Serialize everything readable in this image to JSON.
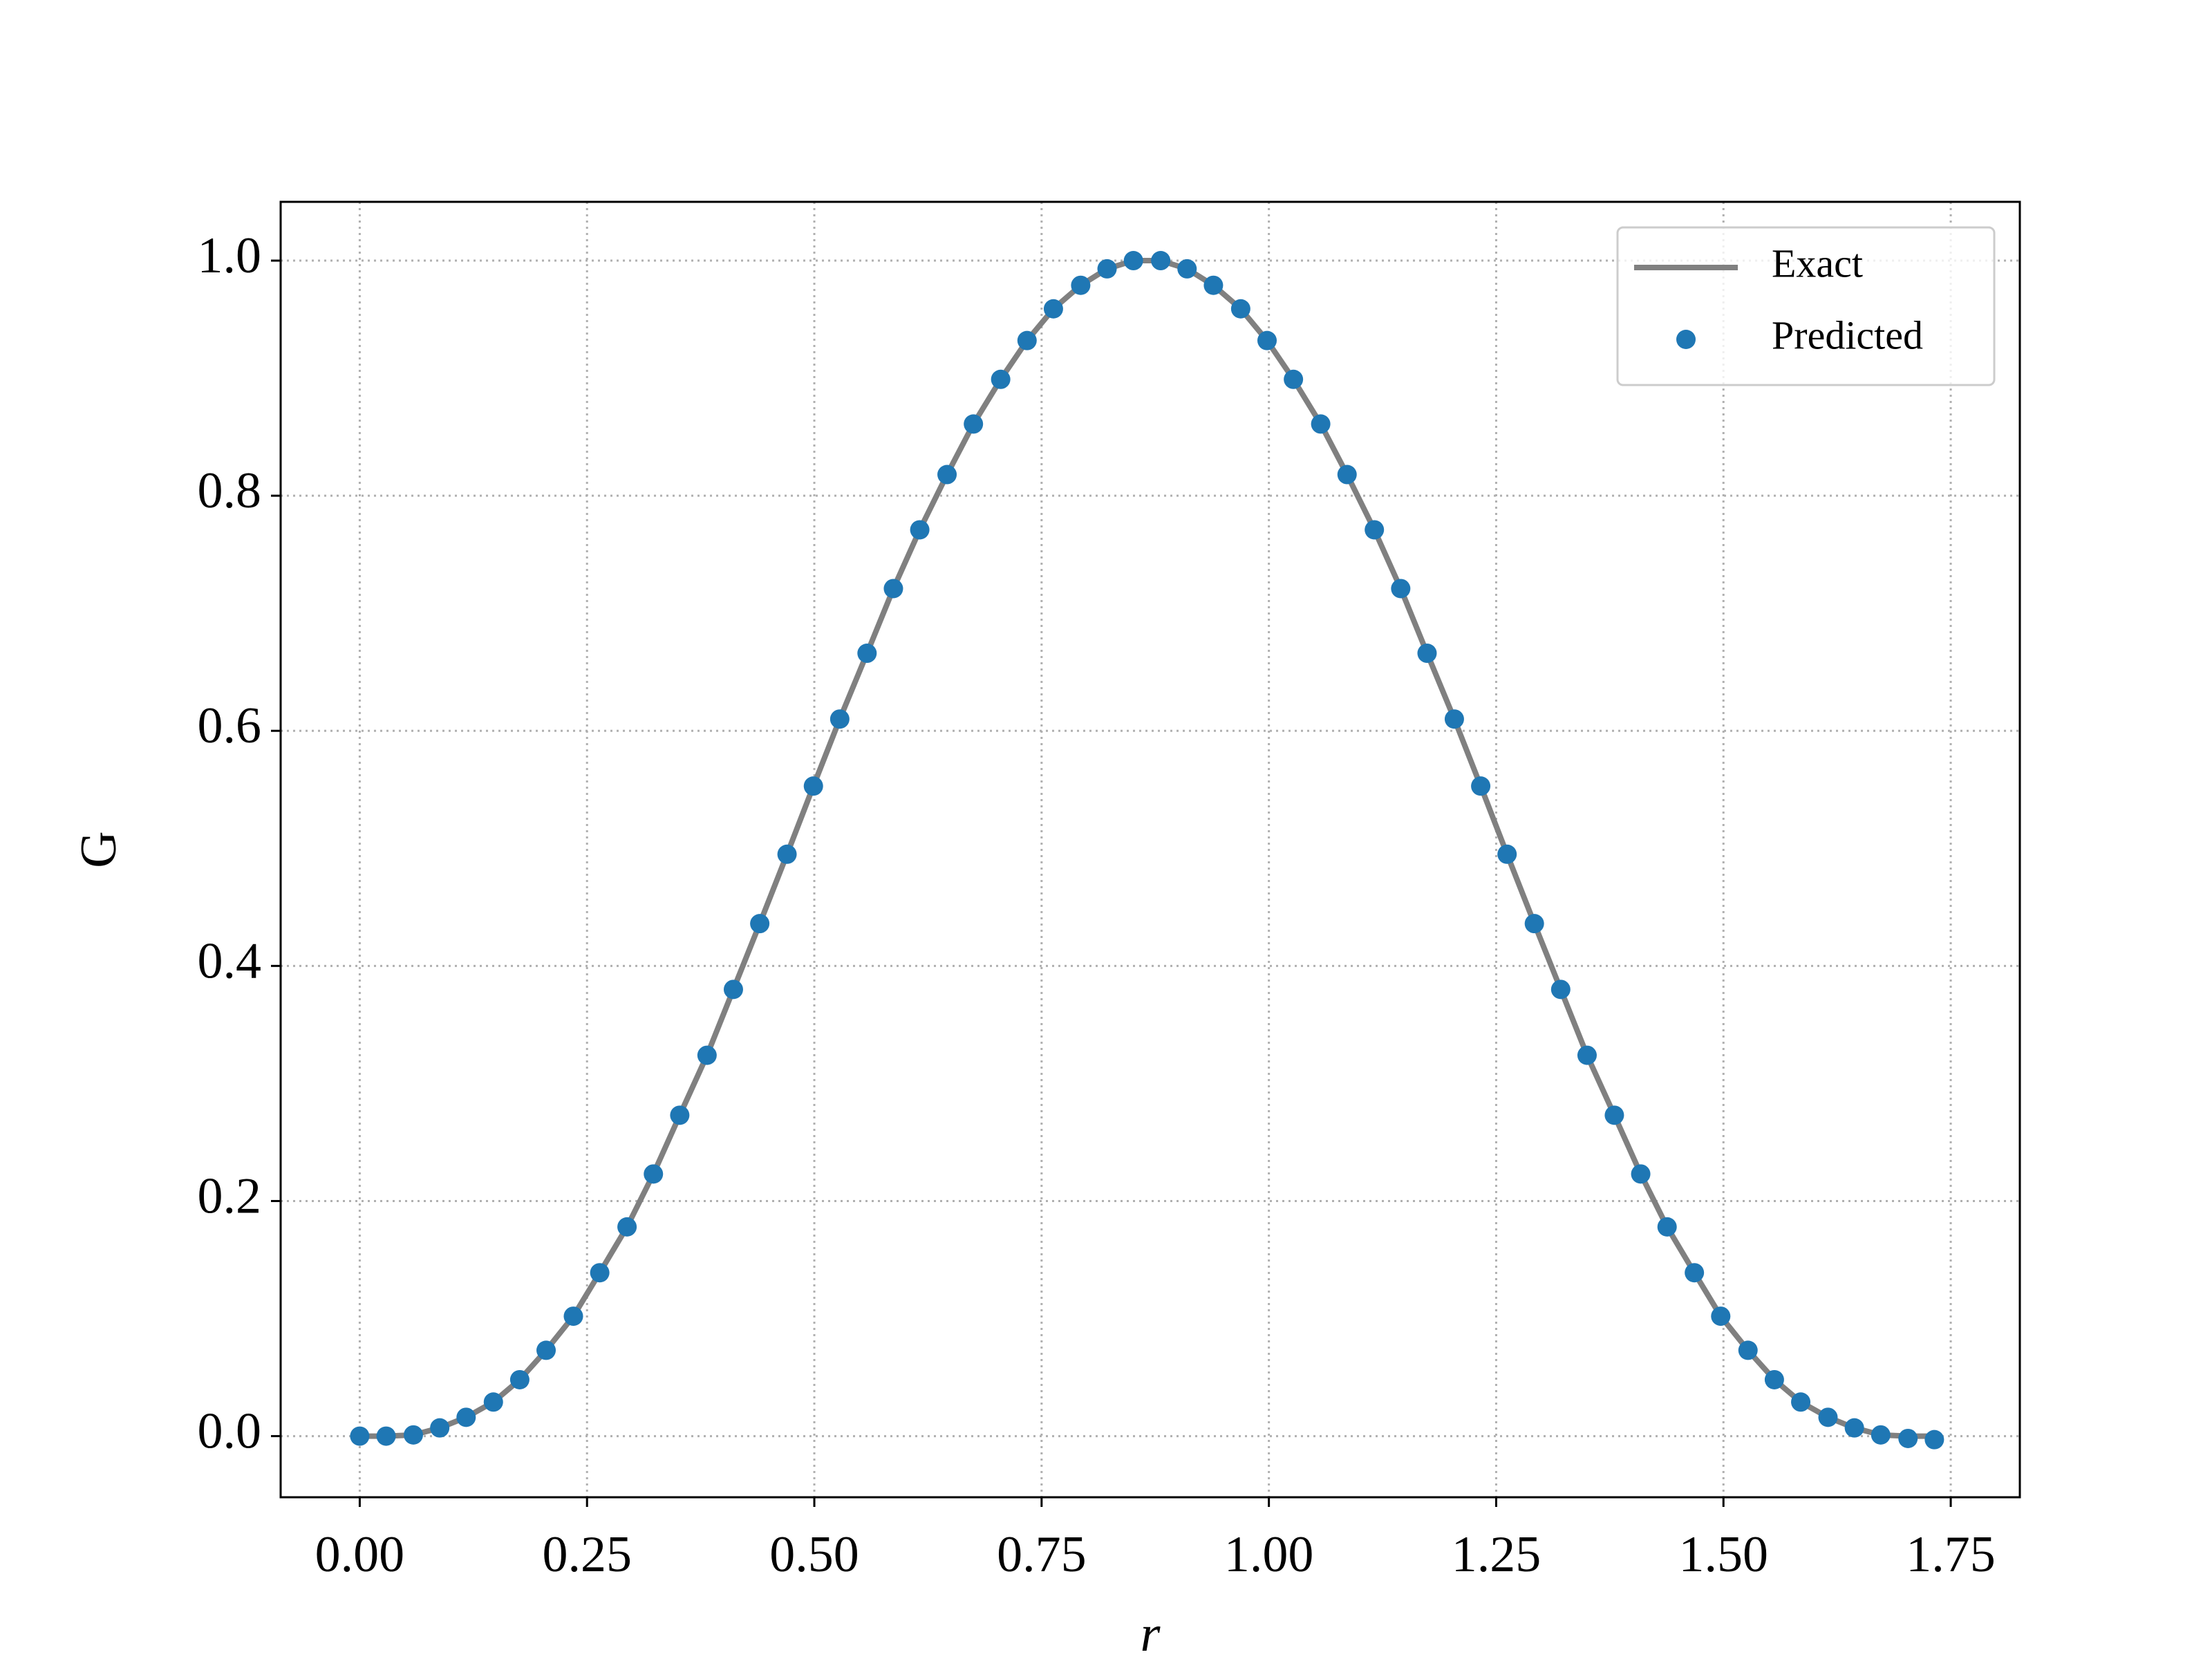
{
  "chart_data": {
    "type": "line",
    "xlabel": "r",
    "ylabel": "G",
    "x": [
      0,
      0.029,
      0.059,
      0.088,
      0.117,
      0.147,
      0.176,
      0.205,
      0.235,
      0.264,
      0.294,
      0.323,
      0.352,
      0.382,
      0.411,
      0.44,
      0.47,
      0.499,
      0.528,
      0.558,
      0.587,
      0.616,
      0.646,
      0.675,
      0.705,
      0.734,
      0.763,
      0.793,
      0.822,
      0.851,
      0.881,
      0.91,
      0.939,
      0.969,
      0.998,
      1.027,
      1.057,
      1.086,
      1.116,
      1.145,
      1.174,
      1.204,
      1.233,
      1.262,
      1.292,
      1.321,
      1.35,
      1.38,
      1.409,
      1.438,
      1.468,
      1.497,
      1.527,
      1.556,
      1.585,
      1.615,
      1.644,
      1.673,
      1.703,
      1.732
    ],
    "series": [
      {
        "name": "Exact",
        "type": "line",
        "color": "#808080",
        "values": [
          0,
          0,
          0.001,
          0.007,
          0.016,
          0.029,
          0.048,
          0.073,
          0.102,
          0.139,
          0.178,
          0.223,
          0.273,
          0.324,
          0.38,
          0.436,
          0.495,
          0.553,
          0.61,
          0.666,
          0.721,
          0.771,
          0.818,
          0.861,
          0.899,
          0.932,
          0.959,
          0.979,
          0.993,
          1.0,
          1.0,
          0.993,
          0.979,
          0.959,
          0.932,
          0.899,
          0.861,
          0.818,
          0.771,
          0.721,
          0.666,
          0.61,
          0.553,
          0.495,
          0.436,
          0.38,
          0.324,
          0.273,
          0.223,
          0.178,
          0.139,
          0.102,
          0.073,
          0.048,
          0.029,
          0.016,
          0.007,
          0.001,
          0,
          0
        ]
      },
      {
        "name": "Predicted",
        "type": "scatter",
        "color": "#1f77b4",
        "values": [
          0,
          0,
          0.001,
          0.007,
          0.016,
          0.029,
          0.048,
          0.073,
          0.102,
          0.139,
          0.178,
          0.223,
          0.273,
          0.324,
          0.38,
          0.436,
          0.495,
          0.553,
          0.61,
          0.666,
          0.721,
          0.771,
          0.818,
          0.861,
          0.899,
          0.932,
          0.959,
          0.979,
          0.993,
          1.0,
          1.0,
          0.993,
          0.979,
          0.959,
          0.932,
          0.899,
          0.861,
          0.818,
          0.771,
          0.721,
          0.666,
          0.61,
          0.553,
          0.495,
          0.436,
          0.38,
          0.324,
          0.273,
          0.223,
          0.178,
          0.139,
          0.102,
          0.073,
          0.048,
          0.029,
          0.016,
          0.007,
          0.001,
          -0.002,
          -0.003
        ]
      }
    ],
    "xlim": [
      -0.087,
      1.826
    ],
    "ylim": [
      -0.052,
      1.05
    ],
    "xticks": [
      {
        "value": 0,
        "label": "0.00"
      },
      {
        "value": 0.25,
        "label": "0.25"
      },
      {
        "value": 0.5,
        "label": "0.50"
      },
      {
        "value": 0.75,
        "label": "0.75"
      },
      {
        "value": 1,
        "label": "1.00"
      },
      {
        "value": 1.25,
        "label": "1.25"
      },
      {
        "value": 1.5,
        "label": "1.50"
      },
      {
        "value": 1.75,
        "label": "1.75"
      }
    ],
    "yticks": [
      {
        "value": 0,
        "label": "0.0"
      },
      {
        "value": 0.2,
        "label": "0.2"
      },
      {
        "value": 0.4,
        "label": "0.4"
      },
      {
        "value": 0.6,
        "label": "0.6"
      },
      {
        "value": 0.8,
        "label": "0.8"
      },
      {
        "value": 1,
        "label": "1.0"
      }
    ],
    "grid": true,
    "legend": "upper right"
  }
}
